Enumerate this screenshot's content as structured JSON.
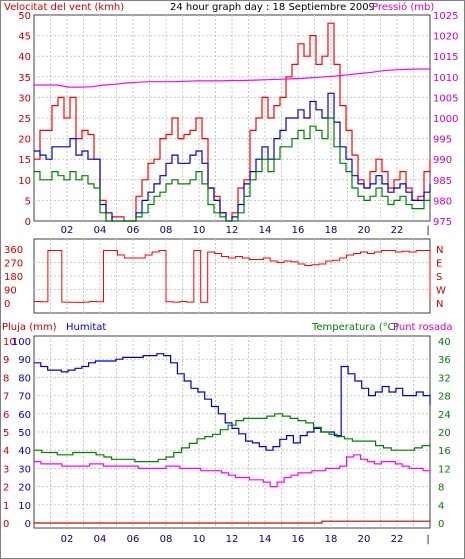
{
  "chart_data": [
    {
      "type": "line",
      "title": "24 hour graph day : 18 Septiembre 2009",
      "y_left_label": "Velocitat del vent (kmh)",
      "y_right_label": "Pressió (mb)",
      "y_left_ticks": [
        "0",
        "5",
        "10",
        "15",
        "20",
        "25",
        "30",
        "35",
        "40",
        "45",
        "50"
      ],
      "y_right_ticks": [
        "975",
        "980",
        "985",
        "990",
        "995",
        "1000",
        "1005",
        "1010",
        "1015",
        "1020",
        "1025"
      ],
      "x_ticks": [
        "02",
        "04",
        "06",
        "08",
        "10",
        "12",
        "14",
        "16",
        "18",
        "20",
        "22"
      ],
      "ylim_left": [
        0,
        50
      ],
      "ylim_right": [
        975,
        1025
      ],
      "series": [
        {
          "axis": "left",
          "color": "#ff0000",
          "values": [
            15,
            22,
            22,
            28,
            30,
            25,
            30,
            20,
            22,
            21,
            15,
            5,
            0,
            1,
            1,
            0,
            0,
            6,
            10,
            14,
            15,
            20,
            21,
            25,
            20,
            21,
            22,
            25,
            20,
            8,
            6,
            2,
            0,
            2,
            8,
            10,
            22,
            25,
            30,
            25,
            28,
            30,
            35,
            38,
            43,
            40,
            45,
            38,
            40,
            48,
            38,
            28,
            22,
            16,
            10,
            8,
            12,
            15,
            12,
            8,
            10,
            12,
            8,
            5,
            6,
            12,
            15
          ]
        },
        {
          "axis": "left",
          "color": "#0000cc",
          "values": [
            17,
            16,
            15,
            18,
            18,
            18,
            20,
            16,
            17,
            15,
            15,
            4,
            2,
            0,
            0,
            0,
            0,
            2,
            5,
            7,
            9,
            11,
            14,
            16,
            14,
            14,
            16,
            17,
            14,
            8,
            5,
            2,
            0,
            1,
            4,
            9,
            12,
            15,
            18,
            15,
            20,
            22,
            25,
            25,
            27,
            25,
            29,
            27,
            25,
            31,
            24,
            18,
            15,
            11,
            9,
            8,
            9,
            11,
            9,
            7,
            8,
            9,
            7,
            5,
            5,
            7,
            9
          ]
        },
        {
          "axis": "left",
          "color": "#008000",
          "values": [
            12,
            10,
            10,
            12,
            11,
            10,
            12,
            10,
            11,
            9,
            8,
            2,
            0,
            0,
            0,
            0,
            0,
            1,
            2,
            4,
            6,
            7,
            9,
            10,
            9,
            9,
            10,
            12,
            9,
            4,
            2,
            1,
            0,
            0,
            2,
            6,
            10,
            12,
            15,
            12,
            15,
            18,
            18,
            20,
            22,
            20,
            23,
            22,
            20,
            25,
            18,
            14,
            12,
            8,
            6,
            5,
            6,
            8,
            6,
            4,
            5,
            6,
            4,
            3,
            3,
            5,
            6
          ]
        },
        {
          "axis": "right",
          "color": "#ff00ff",
          "values": [
            1008,
            1008,
            1008,
            1007.5,
            1007.5,
            1007.6,
            1008,
            1008.2,
            1008.5,
            1008.7,
            1008.8,
            1008.8,
            1008.8,
            1008.9,
            1009,
            1009,
            1009,
            1009.1,
            1009.1,
            1009.2,
            1009.3,
            1009.4,
            1009.5,
            1009.6,
            1009.8,
            1010,
            1010.2,
            1010.5,
            1010.8,
            1011.1,
            1011.5,
            1011.7,
            1011.8,
            1011.9,
            1011.9
          ]
        }
      ]
    },
    {
      "type": "line",
      "title": "",
      "y_left_ticks": [
        "0",
        "90",
        "180",
        "270",
        "360"
      ],
      "y_right_ticks": [
        "N",
        "W",
        "S",
        "E",
        "N"
      ],
      "ylim": [
        0,
        360
      ],
      "series": [
        {
          "color": "#ff0000",
          "name": "direction",
          "values": [
            10,
            8,
            350,
            350,
            6,
            5,
            4,
            6,
            10,
            8,
            350,
            350,
            320,
            300,
            300,
            300,
            320,
            340,
            350,
            8,
            6,
            10,
            6,
            350,
            5,
            340,
            330,
            310,
            300,
            310,
            300,
            290,
            290,
            300,
            280,
            270,
            280,
            275,
            260,
            250,
            255,
            260,
            280,
            285,
            300,
            320,
            330,
            340,
            330,
            340,
            350,
            350,
            340,
            345,
            340,
            350,
            350,
            20
          ]
        }
      ]
    },
    {
      "type": "line",
      "title": "",
      "left_labels": [
        "Pluja (mm)",
        "Humitat"
      ],
      "right_labels": [
        "Temperatura (°C)",
        "Punt rosada"
      ],
      "y_rain_ticks": [
        "0",
        "1",
        "2",
        "3",
        "4",
        "5",
        "6",
        "7",
        "8",
        "9",
        "10"
      ],
      "y_hum_ticks": [
        "0",
        "10",
        "20",
        "30",
        "40",
        "50",
        "60",
        "70",
        "80",
        "90",
        "100"
      ],
      "y_right_ticks": [
        "0",
        "4",
        "8",
        "12",
        "16",
        "20",
        "24",
        "28",
        "32",
        "36",
        "40"
      ],
      "x_ticks": [
        "02",
        "04",
        "06",
        "08",
        "10",
        "12",
        "14",
        "16",
        "18",
        "20",
        "22"
      ],
      "series": [
        {
          "axis": "humidity",
          "color": "#0000cc",
          "name": "Humitat",
          "ylim": [
            0,
            100
          ],
          "values": [
            88,
            86,
            84,
            84,
            83,
            84,
            85,
            86,
            88,
            89,
            89,
            89,
            90,
            91,
            91,
            91,
            92,
            92,
            93,
            92,
            88,
            82,
            78,
            74,
            72,
            68,
            64,
            60,
            55,
            52,
            49,
            45,
            44,
            42,
            40,
            42,
            46,
            48,
            44,
            48,
            50,
            52,
            50,
            50,
            48,
            86,
            82,
            78,
            74,
            70,
            72,
            75,
            72,
            74,
            70,
            70,
            72,
            70,
            65
          ]
        },
        {
          "axis": "temperature",
          "color": "#008000",
          "name": "Temperatura",
          "ylim": [
            0,
            40
          ],
          "values": [
            16,
            15.5,
            15.5,
            15,
            15,
            15.5,
            15.5,
            15.5,
            15,
            14.5,
            14,
            14,
            14,
            13.5,
            13.5,
            13.5,
            14,
            14.5,
            15.5,
            16.5,
            17.5,
            18.5,
            19,
            19.5,
            20.5,
            21.5,
            22.5,
            23,
            23,
            23,
            23.5,
            24,
            23.5,
            23,
            22.5,
            22,
            21,
            20,
            19.5,
            19,
            18.5,
            18,
            18,
            18,
            17,
            16.5,
            16,
            16,
            16,
            16.5,
            17,
            17.5
          ]
        },
        {
          "axis": "temperature",
          "color": "#ff00ff",
          "name": "Punt rosada",
          "ylim": [
            0,
            40
          ],
          "values": [
            13.5,
            13,
            13,
            13,
            12.5,
            12.5,
            12.5,
            12.5,
            13,
            13,
            12.5,
            12.5,
            12.5,
            12.5,
            12.5,
            12,
            12,
            12,
            12,
            12.5,
            12.5,
            12,
            12,
            12,
            11.5,
            11.5,
            11.5,
            11,
            10.5,
            10,
            10,
            9.5,
            9.5,
            9,
            8,
            9,
            10,
            10.5,
            11,
            11,
            11.5,
            11.5,
            12,
            12,
            12.5,
            14.5,
            15,
            14,
            13.5,
            13,
            13.5,
            13.5,
            13,
            12.5,
            12,
            12,
            11.5,
            11
          ]
        },
        {
          "axis": "rain",
          "color": "#cc0000",
          "name": "Pluja",
          "ylim": [
            0,
            10
          ],
          "values": [
            0,
            0,
            0,
            0,
            0,
            0,
            0,
            0,
            0,
            0,
            0,
            0,
            0,
            0,
            0,
            0,
            0.1,
            0.1,
            0.1,
            0.1,
            0.1,
            0.1,
            0.1
          ]
        }
      ]
    }
  ]
}
